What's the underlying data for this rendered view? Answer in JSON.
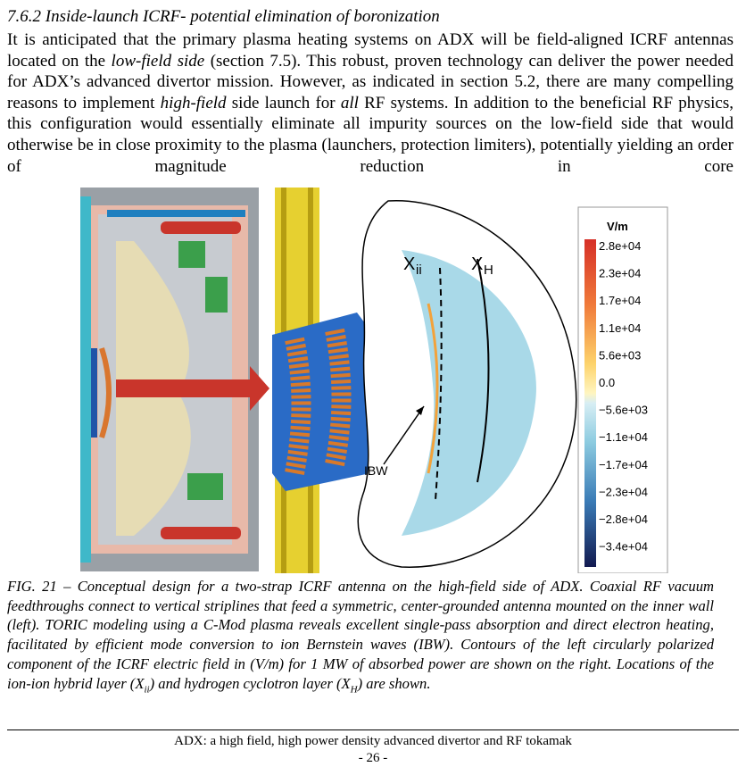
{
  "heading": "7.6.2 Inside-launch ICRF- potential elimination of boronization",
  "paragraph": [
    "It is anticipated that the primary plasma heating systems on ADX will be field-aligned ICRF antennas located on the ",
    "low-field side",
    " (section 7.5). This robust, proven technology can deliver the power needed for ADX’s advanced divertor mission. However, as indicated in section 5.2, there are many compelling reasons to implement ",
    "high-field",
    " side launch for ",
    "all",
    " RF systems. In addition to the beneficial RF physics, this configuration would essentially eliminate all impurity sources on the low-field side that would otherwise be in close proximity to the plasma (launchers, protection limiters), potentially yielding an order of magnitude reduction in core"
  ],
  "figure": {
    "colorbar": {
      "unit": "V/m",
      "labels": [
        "2.8e+04",
        "2.3e+04",
        "1.7e+04",
        "1.1e+04",
        "5.6e+03",
        "0.0",
        "−5.6e+03",
        "−1.1e+04",
        "−1.7e+04",
        "−2.3e+04",
        "−2.8e+04",
        "−3.4e+04"
      ]
    },
    "labels": {
      "xii": {
        "base": "X",
        "sub": "ii"
      },
      "xh": {
        "base": "X",
        "sub": "H"
      },
      "ibw": "IBW"
    }
  },
  "caption": [
    "FIG. 21 – Conceptual design for a two-strap ICRF antenna on the high-field side of ADX. Coaxial RF vacuum feedthroughs connect to vertical striplines that feed a symmetric, center-grounded antenna mounted on the inner wall (left). TORIC modeling using a C-Mod plasma reveals excellent single-pass absorption and direct electron heating, facilitated by efficient mode conversion to ion Bernstein waves (IBW). Contours of the left circularly polarized component of the ICRF electric field in (V/m) for 1 MW of absorbed power are shown on the right. Locations of the ion-ion hybrid layer (X",
    "ii",
    ") and hydrogen cyclotron layer (X",
    "H",
    ") are shown."
  ],
  "footer": {
    "title": "ADX: a high field, high power density advanced divertor and RF tokamak",
    "page": "- 26 -"
  }
}
